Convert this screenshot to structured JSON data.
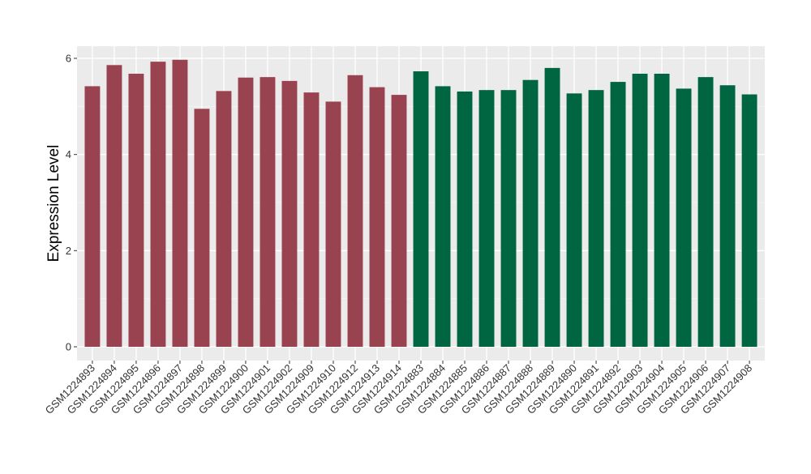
{
  "chart_data": {
    "type": "bar",
    "ylabel": "Expression Level",
    "xlabel": "",
    "ylim": [
      0,
      6.25
    ],
    "yticks": [
      0,
      2,
      4,
      6
    ],
    "ytick_labels": [
      "0",
      "2",
      "4",
      "6"
    ],
    "grid": true,
    "legend": "none",
    "colors": {
      "group1": "#9a4350",
      "group2": "#006642",
      "panel": "#ebebeb",
      "grid": "#ffffff"
    },
    "categories": [
      "GSM1224893",
      "GSM1224894",
      "GSM1224895",
      "GSM1224896",
      "GSM1224897",
      "GSM1224898",
      "GSM1224899",
      "GSM1224900",
      "GSM1224901",
      "GSM1224902",
      "GSM1224909",
      "GSM1224910",
      "GSM1224912",
      "GSM1224913",
      "GSM1224914",
      "GSM1224883",
      "GSM1224884",
      "GSM1224885",
      "GSM1224886",
      "GSM1224887",
      "GSM1224888",
      "GSM1224889",
      "GSM1224890",
      "GSM1224891",
      "GSM1224892",
      "GSM1224903",
      "GSM1224904",
      "GSM1224905",
      "GSM1224906",
      "GSM1224907",
      "GSM1224908"
    ],
    "values": [
      5.42,
      5.86,
      5.68,
      5.93,
      5.97,
      4.95,
      5.32,
      5.6,
      5.61,
      5.53,
      5.29,
      5.1,
      5.65,
      5.4,
      5.24,
      5.73,
      5.42,
      5.31,
      5.34,
      5.34,
      5.55,
      5.8,
      5.27,
      5.34,
      5.51,
      5.68,
      5.68,
      5.37,
      5.61,
      5.44,
      5.25
    ],
    "groups": [
      "group1",
      "group1",
      "group1",
      "group1",
      "group1",
      "group1",
      "group1",
      "group1",
      "group1",
      "group1",
      "group1",
      "group1",
      "group1",
      "group1",
      "group1",
      "group2",
      "group2",
      "group2",
      "group2",
      "group2",
      "group2",
      "group2",
      "group2",
      "group2",
      "group2",
      "group2",
      "group2",
      "group2",
      "group2",
      "group2",
      "group2"
    ]
  }
}
